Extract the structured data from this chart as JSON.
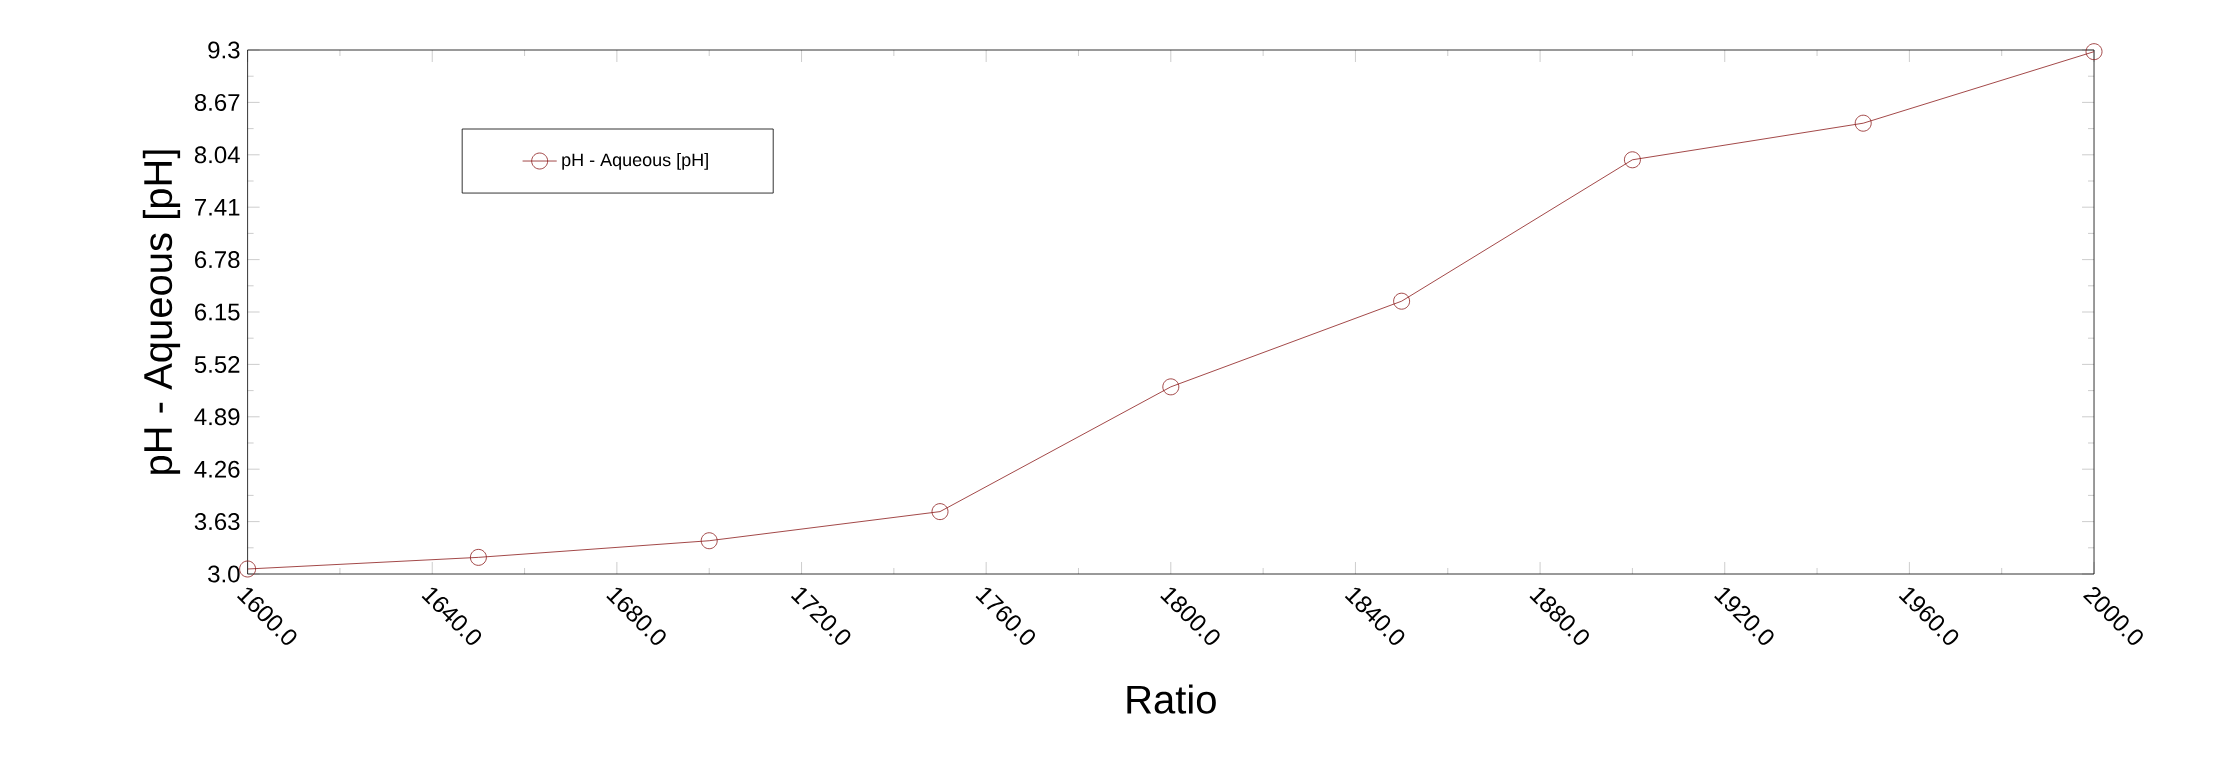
{
  "chart_data": {
    "type": "line",
    "xlabel": "Ratio",
    "ylabel": "pH - Aqueous [pH]",
    "x": [
      1600,
      1650,
      1700,
      1750,
      1800,
      1850,
      1900,
      1950,
      2000
    ],
    "series": [
      {
        "name": "pH - Aqueous [pH]",
        "color": "#8b1a1a",
        "values": [
          3.06,
          3.2,
          3.4,
          3.75,
          5.25,
          6.28,
          7.98,
          8.42,
          9.28
        ]
      }
    ],
    "xlim": [
      1600,
      2000
    ],
    "xticks": [
      {
        "value": 1600,
        "label": "1600.0"
      },
      {
        "value": 1640,
        "label": "1640.0"
      },
      {
        "value": 1680,
        "label": "1680.0"
      },
      {
        "value": 1720,
        "label": "1720.0"
      },
      {
        "value": 1760,
        "label": "1760.0"
      },
      {
        "value": 1800,
        "label": "1800.0"
      },
      {
        "value": 1840,
        "label": "1840.0"
      },
      {
        "value": 1880,
        "label": "1880.0"
      },
      {
        "value": 1920,
        "label": "1920.0"
      },
      {
        "value": 1960,
        "label": "1960.0"
      },
      {
        "value": 2000,
        "label": "2000.0"
      }
    ],
    "ylim": [
      3.0,
      9.3
    ],
    "yticks": [
      {
        "value": 3.0,
        "label": "3.0"
      },
      3.63,
      4.26,
      4.89,
      5.52,
      6.15,
      6.78,
      7.41,
      8.04,
      8.67,
      9.3
    ],
    "legend": "top left",
    "marker": "circle",
    "line_style": "solid",
    "grid": false
  }
}
